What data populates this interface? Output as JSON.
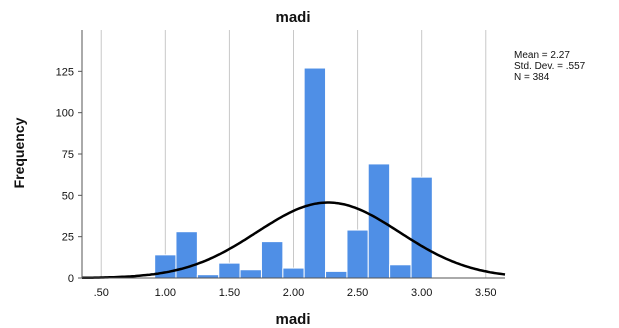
{
  "chart_data": {
    "type": "bar",
    "title": "madi",
    "xlabel": "madi",
    "ylabel": "Frequency",
    "bar_color": "#4f8fe6",
    "curve_color": "#000000",
    "grid": true,
    "xlim": [
      0.35,
      3.65
    ],
    "ylim": [
      0,
      150
    ],
    "x_ticks": [
      0.5,
      1.0,
      1.5,
      2.0,
      2.5,
      3.0,
      3.5
    ],
    "x_tick_labels": [
      ".50",
      "1.00",
      "1.50",
      "2.00",
      "2.50",
      "3.00",
      "3.50"
    ],
    "y_ticks": [
      0,
      25,
      50,
      75,
      100,
      125
    ],
    "y_tick_labels": [
      "0",
      "25",
      "50",
      "75",
      "100",
      "125"
    ],
    "bins": [
      {
        "start": 0.917,
        "end": 1.083,
        "value": 14
      },
      {
        "start": 1.083,
        "end": 1.25,
        "value": 28
      },
      {
        "start": 1.25,
        "end": 1.417,
        "value": 2
      },
      {
        "start": 1.417,
        "end": 1.583,
        "value": 9
      },
      {
        "start": 1.583,
        "end": 1.75,
        "value": 5
      },
      {
        "start": 1.75,
        "end": 1.917,
        "value": 22
      },
      {
        "start": 1.917,
        "end": 2.083,
        "value": 6
      },
      {
        "start": 2.083,
        "end": 2.25,
        "value": 127
      },
      {
        "start": 2.25,
        "end": 2.417,
        "value": 4
      },
      {
        "start": 2.417,
        "end": 2.583,
        "value": 29
      },
      {
        "start": 2.583,
        "end": 2.75,
        "value": 69
      },
      {
        "start": 2.75,
        "end": 2.917,
        "value": 8
      },
      {
        "start": 2.917,
        "end": 3.083,
        "value": 61
      }
    ],
    "normal_curve": {
      "mean": 2.27,
      "sd": 0.557,
      "n": 384
    },
    "stats_lines": [
      "Mean = 2.27",
      "Std. Dev. = .557",
      "N = 384"
    ]
  }
}
